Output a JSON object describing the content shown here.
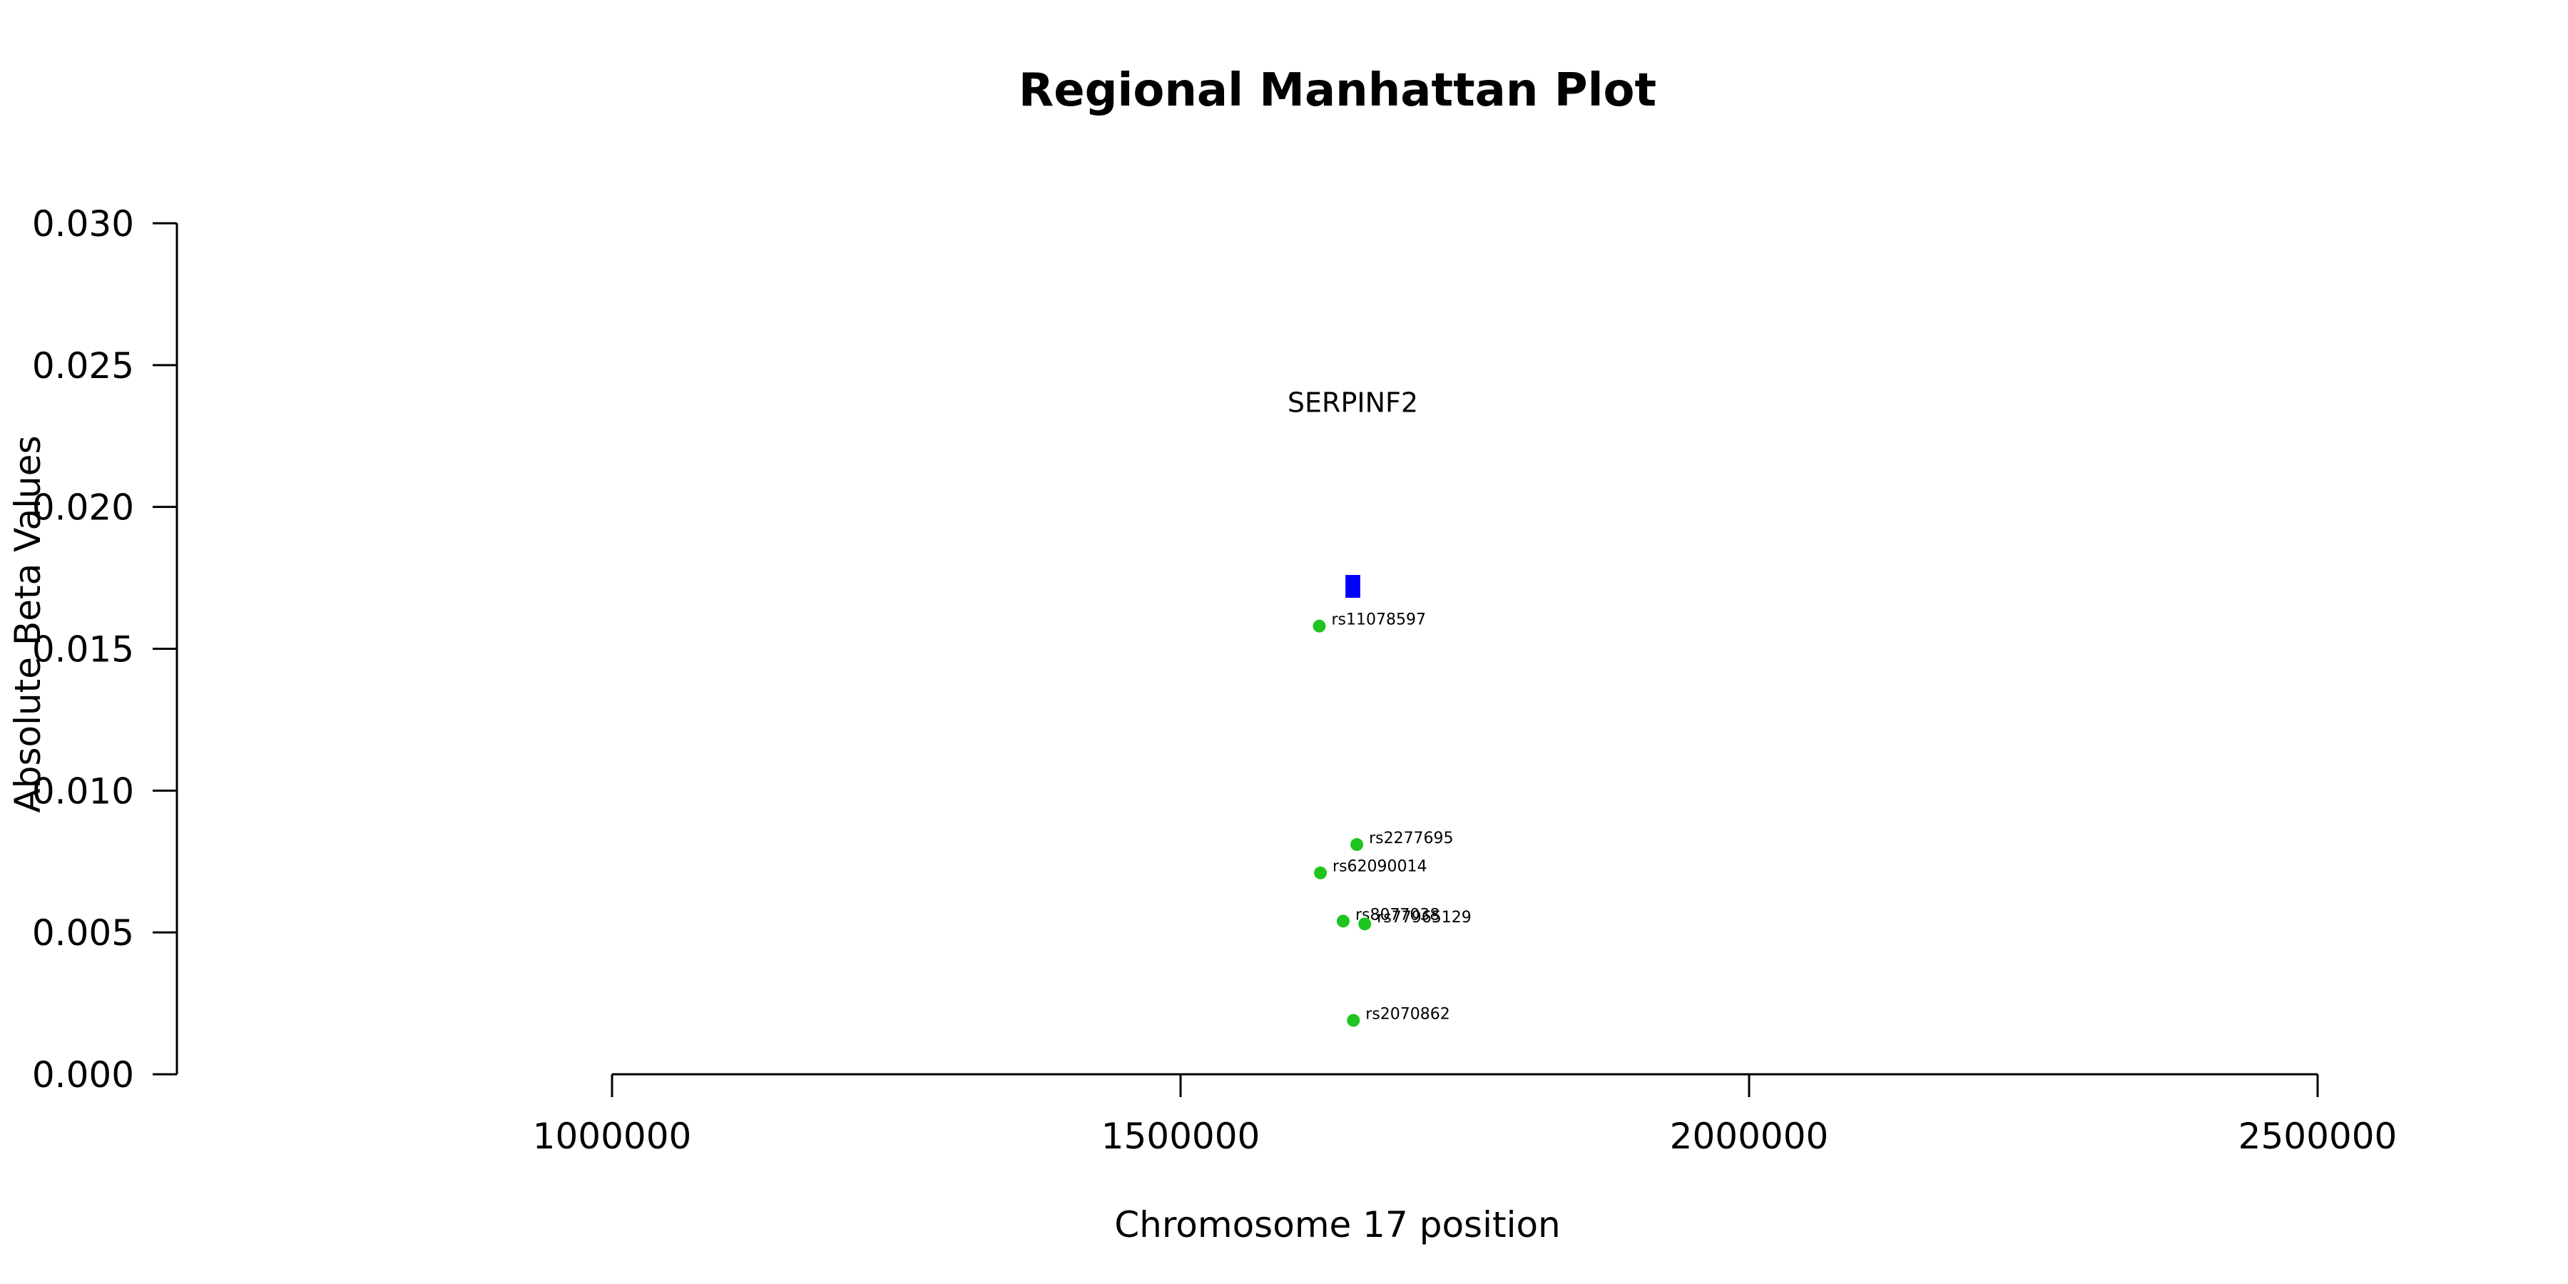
{
  "chart_data": {
    "type": "scatter",
    "title": "Regional Manhattan Plot",
    "xlabel": "Chromosome 17 position",
    "ylabel": "Absolute Beta Values",
    "xlim": [
      1000000,
      2500000
    ],
    "ylim": [
      0,
      0.03
    ],
    "x_ticks": [
      1000000,
      1500000,
      2000000,
      2500000
    ],
    "x_tick_labels": [
      "1000000",
      "1500000",
      "2000000",
      "2500000"
    ],
    "y_ticks": [
      0,
      0.005,
      0.01,
      0.015,
      0.02,
      0.025,
      0.03
    ],
    "y_tick_labels": [
      "0.000",
      "0.005",
      "0.010",
      "0.015",
      "0.020",
      "0.025",
      "0.030"
    ],
    "grid": false,
    "point_color": "#1fc41f",
    "gene_color": "#0000ff",
    "genes": [
      {
        "name": "SERPINF2",
        "start": 1645000,
        "end": 1658000,
        "y": 0.0172,
        "label_y": 0.0237
      }
    ],
    "points": [
      {
        "label": "rs11078597",
        "x": 1622000,
        "y": 0.0158
      },
      {
        "label": "rs2277695",
        "x": 1655000,
        "y": 0.0081
      },
      {
        "label": "rs62090014",
        "x": 1623000,
        "y": 0.0071
      },
      {
        "label": "rs8077038",
        "x": 1643000,
        "y": 0.0054
      },
      {
        "label": "rs77965129",
        "x": 1662000,
        "y": 0.0053
      },
      {
        "label": "rs2070862",
        "x": 1652000,
        "y": 0.0019
      }
    ]
  }
}
